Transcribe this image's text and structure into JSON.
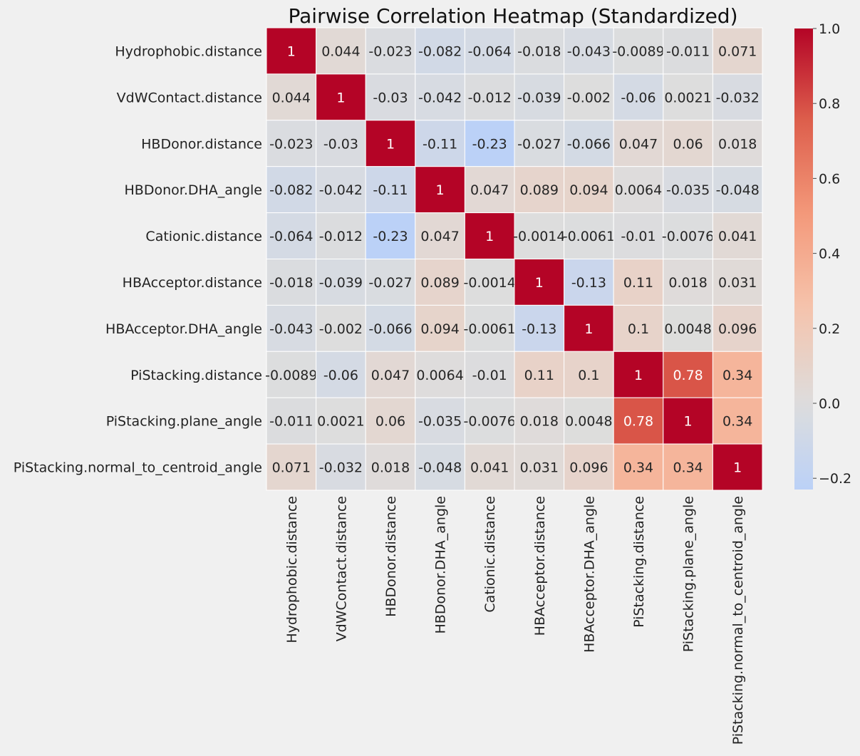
{
  "chart_data": {
    "type": "heatmap",
    "title": "Pairwise Correlation Heatmap (Standardized)",
    "labels": [
      "Hydrophobic.distance",
      "VdWContact.distance",
      "HBDonor.distance",
      "HBDonor.DHA_angle",
      "Cationic.distance",
      "HBAcceptor.distance",
      "HBAcceptor.DHA_angle",
      "PiStacking.distance",
      "PiStacking.plane_angle",
      "PiStacking.normal_to_centroid_angle"
    ],
    "values": [
      [
        1,
        0.044,
        -0.023,
        -0.082,
        -0.064,
        -0.018,
        -0.043,
        -0.0089,
        -0.011,
        0.071
      ],
      [
        0.044,
        1,
        -0.03,
        -0.042,
        -0.012,
        -0.039,
        -0.002,
        -0.06,
        0.0021,
        -0.032
      ],
      [
        -0.023,
        -0.03,
        1,
        -0.11,
        -0.23,
        -0.027,
        -0.066,
        0.047,
        0.06,
        0.018
      ],
      [
        -0.082,
        -0.042,
        -0.11,
        1,
        0.047,
        0.089,
        0.094,
        0.0064,
        -0.035,
        -0.048
      ],
      [
        -0.064,
        -0.012,
        -0.23,
        0.047,
        1,
        -0.0014,
        -0.0061,
        -0.01,
        -0.0076,
        0.041
      ],
      [
        -0.018,
        -0.039,
        -0.027,
        0.089,
        -0.0014,
        1,
        -0.13,
        0.11,
        0.018,
        0.031
      ],
      [
        -0.043,
        -0.002,
        -0.066,
        0.094,
        -0.0061,
        -0.13,
        1,
        0.1,
        0.0048,
        0.096
      ],
      [
        -0.0089,
        -0.06,
        0.047,
        0.0064,
        -0.01,
        0.11,
        0.1,
        1,
        0.78,
        0.34
      ],
      [
        -0.011,
        0.0021,
        0.06,
        -0.035,
        -0.0076,
        0.018,
        0.0048,
        0.78,
        1,
        0.34
      ],
      [
        0.071,
        -0.032,
        0.018,
        -0.048,
        0.041,
        0.031,
        0.096,
        0.34,
        0.34,
        1
      ]
    ],
    "value_labels": [
      [
        "1",
        "0.044",
        "-0.023",
        "-0.082",
        "-0.064",
        "-0.018",
        "-0.043",
        "-0.0089",
        "-0.011",
        "0.071"
      ],
      [
        "0.044",
        "1",
        "-0.03",
        "-0.042",
        "-0.012",
        "-0.039",
        "-0.002",
        "-0.06",
        "0.0021",
        "-0.032"
      ],
      [
        "-0.023",
        "-0.03",
        "1",
        "-0.11",
        "-0.23",
        "-0.027",
        "-0.066",
        "0.047",
        "0.06",
        "0.018"
      ],
      [
        "-0.082",
        "-0.042",
        "-0.11",
        "1",
        "0.047",
        "0.089",
        "0.094",
        "0.0064",
        "-0.035",
        "-0.048"
      ],
      [
        "-0.064",
        "-0.012",
        "-0.23",
        "0.047",
        "1",
        "-0.0014",
        "-0.0061",
        "-0.01",
        "-0.0076",
        "0.041"
      ],
      [
        "-0.018",
        "-0.039",
        "-0.027",
        "0.089",
        "-0.0014",
        "1",
        "-0.13",
        "0.11",
        "0.018",
        "0.031"
      ],
      [
        "-0.043",
        "-0.002",
        "-0.066",
        "0.094",
        "-0.0061",
        "-0.13",
        "1",
        "0.1",
        "0.0048",
        "0.096"
      ],
      [
        "-0.0089",
        "-0.06",
        "0.047",
        "0.0064",
        "-0.01",
        "0.11",
        "0.1",
        "1",
        "0.78",
        "0.34"
      ],
      [
        "-0.011",
        "0.0021",
        "0.06",
        "-0.035",
        "-0.0076",
        "0.018",
        "0.0048",
        "0.78",
        "1",
        "0.34"
      ],
      [
        "0.071",
        "-0.032",
        "0.018",
        "-0.048",
        "0.041",
        "0.031",
        "0.096",
        "0.34",
        "0.34",
        "1"
      ]
    ],
    "colormap": "coolwarm",
    "vmin": -0.23,
    "vmax": 1.0,
    "colorbar_ticks": [
      1.0,
      0.8,
      0.6,
      0.4,
      0.2,
      0.0,
      -0.2
    ],
    "colorbar_tick_labels": [
      "1.0",
      "0.8",
      "0.6",
      "0.4",
      "0.2",
      "0.0",
      "−0.2"
    ],
    "colors": {
      "background": "#f0f0f0",
      "cell_border": "#ffffff",
      "text_dark": "#262626",
      "text_light": "#ffffff"
    }
  }
}
